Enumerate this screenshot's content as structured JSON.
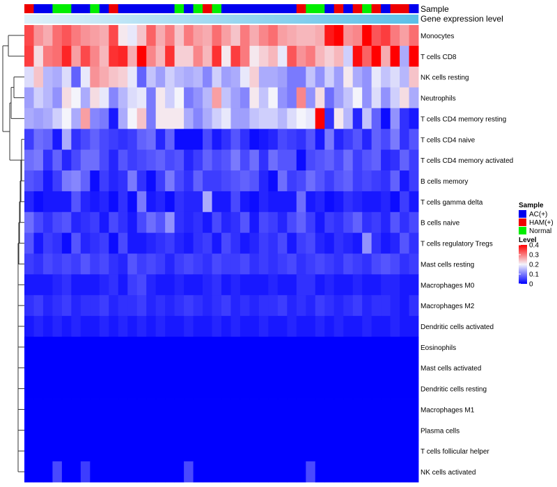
{
  "chart_data": {
    "type": "heatmap",
    "annotation_rows": [
      "Sample",
      "Gene expression level"
    ],
    "sample_annotation": [
      "HAM(+)",
      "AC(+)",
      "AC(+)",
      "Normal",
      "Normal",
      "AC(+)",
      "AC(+)",
      "Normal",
      "AC(+)",
      "HAM(+)",
      "AC(+)",
      "AC(+)",
      "AC(+)",
      "AC(+)",
      "AC(+)",
      "AC(+)",
      "Normal",
      "AC(+)",
      "Normal",
      "HAM(+)",
      "Normal",
      "AC(+)",
      "AC(+)",
      "AC(+)",
      "AC(+)",
      "AC(+)",
      "AC(+)",
      "AC(+)",
      "AC(+)",
      "HAM(+)",
      "Normal",
      "Normal",
      "AC(+)",
      "HAM(+)",
      "AC(+)",
      "HAM(+)",
      "Normal",
      "HAM(+)",
      "AC(+)",
      "HAM(+)",
      "HAM(+)",
      "AC(+)"
    ],
    "expression_gradient": [
      "#dff1fa",
      "#5bbfe8"
    ],
    "rows": [
      "Monocytes",
      "T cells CD8",
      "NK cells resting",
      "Neutrophils",
      "T cells CD4 memory resting",
      "T cells CD4 naive",
      "T cells CD4 memory activated",
      "B cells memory",
      "T cells gamma delta",
      "B cells naive",
      "T cells regulatory  Tregs",
      "Mast cells resting",
      "Macrophages M0",
      "Macrophages M2",
      "Dendritic cells activated",
      "Eosinophils",
      "Mast cells activated",
      "Dendritic cells resting",
      "Macrophages M1",
      "Plasma cells",
      "T cells follicular helper",
      "NK cells activated"
    ],
    "value_range": [
      0,
      0.4
    ],
    "values": [
      [
        0.34,
        0.28,
        0.26,
        0.31,
        0.33,
        0.3,
        0.28,
        0.27,
        0.26,
        0.34,
        0.21,
        0.19,
        0.24,
        0.32,
        0.26,
        0.3,
        0.24,
        0.3,
        0.27,
        0.26,
        0.31,
        0.27,
        0.24,
        0.3,
        0.26,
        0.29,
        0.31,
        0.27,
        0.26,
        0.25,
        0.25,
        0.26,
        0.38,
        0.4,
        0.28,
        0.29,
        0.4,
        0.33,
        0.35,
        0.3,
        0.27,
        0.31
      ],
      [
        0.35,
        0.22,
        0.3,
        0.31,
        0.37,
        0.27,
        0.34,
        0.29,
        0.25,
        0.36,
        0.37,
        0.26,
        0.4,
        0.29,
        0.25,
        0.36,
        0.23,
        0.23,
        0.29,
        0.25,
        0.36,
        0.21,
        0.35,
        0.3,
        0.21,
        0.23,
        0.25,
        0.19,
        0.33,
        0.28,
        0.3,
        0.25,
        0.23,
        0.25,
        0.17,
        0.39,
        0.32,
        0.4,
        0.26,
        0.4,
        0.14,
        0.4
      ],
      [
        0.18,
        0.24,
        0.15,
        0.14,
        0.18,
        0.08,
        0.19,
        0.28,
        0.26,
        0.24,
        0.23,
        0.19,
        0.08,
        0.16,
        0.13,
        0.17,
        0.15,
        0.14,
        0.15,
        0.11,
        0.17,
        0.13,
        0.14,
        0.19,
        0.23,
        0.14,
        0.14,
        0.13,
        0.1,
        0.1,
        0.16,
        0.12,
        0.17,
        0.13,
        0.21,
        0.14,
        0.12,
        0.19,
        0.16,
        0.18,
        0.15,
        0.24
      ],
      [
        0.13,
        0.17,
        0.15,
        0.12,
        0.22,
        0.2,
        0.14,
        0.22,
        0.19,
        0.11,
        0.15,
        0.18,
        0.19,
        0.1,
        0.21,
        0.17,
        0.2,
        0.1,
        0.12,
        0.15,
        0.27,
        0.16,
        0.13,
        0.11,
        0.21,
        0.16,
        0.2,
        0.12,
        0.1,
        0.29,
        0.12,
        0.22,
        0.09,
        0.13,
        0.16,
        0.2,
        0.12,
        0.18,
        0.12,
        0.17,
        0.22,
        0.14
      ],
      [
        0.14,
        0.13,
        0.14,
        0.17,
        0.2,
        0.14,
        0.27,
        0.11,
        0.1,
        0.02,
        0.14,
        0.2,
        0.24,
        0.1,
        0.21,
        0.21,
        0.21,
        0.14,
        0.11,
        0.14,
        0.17,
        0.19,
        0.13,
        0.13,
        0.16,
        0.17,
        0.17,
        0.15,
        0.18,
        0.2,
        0.19,
        0.4,
        0.04,
        0.21,
        0.15,
        0.03,
        0.16,
        0.08,
        0.01,
        0.12,
        0.04,
        0.02
      ],
      [
        0.05,
        0.09,
        0.08,
        0.02,
        0.14,
        0.04,
        0.06,
        0.08,
        0.06,
        0.05,
        0.04,
        0.05,
        0.08,
        0.09,
        0.03,
        0.08,
        0.01,
        0.01,
        0.01,
        0.06,
        0.02,
        0.04,
        0.07,
        0.04,
        0.01,
        0.02,
        0.03,
        0.06,
        0.05,
        0.04,
        0.07,
        0.02,
        0.1,
        0.03,
        0.05,
        0.07,
        0.03,
        0.08,
        0.06,
        0.1,
        0.04,
        0.07
      ],
      [
        0.09,
        0.1,
        0.04,
        0.08,
        0.03,
        0.06,
        0.09,
        0.09,
        0.06,
        0.03,
        0.07,
        0.05,
        0.06,
        0.07,
        0.08,
        0.06,
        0.07,
        0.03,
        0.05,
        0.08,
        0.06,
        0.07,
        0.1,
        0.06,
        0.09,
        0.04,
        0.09,
        0.07,
        0.07,
        0.01,
        0.06,
        0.07,
        0.08,
        0.06,
        0.09,
        0.05,
        0.07,
        0.08,
        0.03,
        0.04,
        0.08,
        0.05
      ],
      [
        0.07,
        0.06,
        0.02,
        0.05,
        0.1,
        0.11,
        0.08,
        0.01,
        0.05,
        0.03,
        0.04,
        0.1,
        0.04,
        0.01,
        0.05,
        0.1,
        0.06,
        0.04,
        0.08,
        0.05,
        0.05,
        0.06,
        0.07,
        0.08,
        0.07,
        0.03,
        0.01,
        0.09,
        0.05,
        0.06,
        0.09,
        0.07,
        0.05,
        0.07,
        0.08,
        0.05,
        0.06,
        0.05,
        0.04,
        0.08,
        0.02,
        0.05
      ],
      [
        0.03,
        0.01,
        0.02,
        0.02,
        0.02,
        0.07,
        0.03,
        0.02,
        0.03,
        0.01,
        0.04,
        0.01,
        0.1,
        0.02,
        0.03,
        0.01,
        0.04,
        0.03,
        0.03,
        0.14,
        0.02,
        0.02,
        0.06,
        0.02,
        0.01,
        0.03,
        0.02,
        0.02,
        0.02,
        0.09,
        0.02,
        0.03,
        0.01,
        0.02,
        0.04,
        0.03,
        0.02,
        0.02,
        0.03,
        0.01,
        0.05,
        0.02
      ],
      [
        0.09,
        0.06,
        0.04,
        0.06,
        0.07,
        0.03,
        0.04,
        0.05,
        0.02,
        0.06,
        0.04,
        0.02,
        0.06,
        0.09,
        0.07,
        0.12,
        0.04,
        0.03,
        0.04,
        0.02,
        0.06,
        0.03,
        0.04,
        0.07,
        0.02,
        0.06,
        0.05,
        0.03,
        0.06,
        0.08,
        0.05,
        0.02,
        0.05,
        0.04,
        0.06,
        0.08,
        0.04,
        0.05,
        0.03,
        0.07,
        0.04,
        0.06
      ],
      [
        0.07,
        0.02,
        0.05,
        0.04,
        0.01,
        0.07,
        0.03,
        0.04,
        0.05,
        0.01,
        0.06,
        0.02,
        0.02,
        0.03,
        0.04,
        0.05,
        0.03,
        0.02,
        0.04,
        0.05,
        0.02,
        0.06,
        0.04,
        0.02,
        0.03,
        0.05,
        0.04,
        0.06,
        0.02,
        0.05,
        0.06,
        0.03,
        0.02,
        0.04,
        0.03,
        0.02,
        0.12,
        0.04,
        0.02,
        0.03,
        0.07,
        0.04
      ],
      [
        0.05,
        0.04,
        0.06,
        0.05,
        0.06,
        0.05,
        0.07,
        0.05,
        0.06,
        0.04,
        0.03,
        0.07,
        0.05,
        0.06,
        0.05,
        0.03,
        0.05,
        0.06,
        0.05,
        0.04,
        0.06,
        0.05,
        0.05,
        0.06,
        0.04,
        0.05,
        0.04,
        0.05,
        0.06,
        0.04,
        0.05,
        0.06,
        0.05,
        0.04,
        0.06,
        0.05,
        0.04,
        0.06,
        0.07,
        0.06,
        0.04,
        0.05
      ],
      [
        0.02,
        0.02,
        0.02,
        0.03,
        0.04,
        0.02,
        0.02,
        0.02,
        0.03,
        0.04,
        0.02,
        0.05,
        0.06,
        0.03,
        0.02,
        0.02,
        0.03,
        0.02,
        0.02,
        0.03,
        0.04,
        0.02,
        0.03,
        0.02,
        0.02,
        0.02,
        0.03,
        0.02,
        0.02,
        0.04,
        0.04,
        0.02,
        0.03,
        0.02,
        0.02,
        0.03,
        0.02,
        0.02,
        0.03,
        0.03,
        0.02,
        0.02
      ],
      [
        0.04,
        0.05,
        0.03,
        0.04,
        0.05,
        0.03,
        0.04,
        0.04,
        0.05,
        0.03,
        0.04,
        0.04,
        0.05,
        0.03,
        0.04,
        0.03,
        0.04,
        0.05,
        0.04,
        0.03,
        0.04,
        0.05,
        0.03,
        0.04,
        0.03,
        0.04,
        0.04,
        0.05,
        0.03,
        0.04,
        0.03,
        0.05,
        0.04,
        0.03,
        0.04,
        0.05,
        0.03,
        0.04,
        0.04,
        0.03,
        0.02,
        0.04
      ],
      [
        0.02,
        0.03,
        0.02,
        0.03,
        0.02,
        0.03,
        0.02,
        0.02,
        0.03,
        0.02,
        0.03,
        0.02,
        0.03,
        0.02,
        0.03,
        0.02,
        0.02,
        0.03,
        0.02,
        0.02,
        0.03,
        0.02,
        0.03,
        0.02,
        0.02,
        0.03,
        0.02,
        0.02,
        0.03,
        0.02,
        0.02,
        0.03,
        0.02,
        0.03,
        0.02,
        0.02,
        0.03,
        0.02,
        0.02,
        0.03,
        0.02,
        0.02
      ],
      [
        0,
        0,
        0,
        0,
        0,
        0,
        0,
        0,
        0,
        0,
        0,
        0,
        0,
        0,
        0,
        0,
        0,
        0,
        0,
        0,
        0,
        0,
        0,
        0,
        0,
        0,
        0,
        0,
        0,
        0,
        0,
        0,
        0,
        0,
        0,
        0,
        0,
        0,
        0,
        0,
        0,
        0
      ],
      [
        0,
        0,
        0,
        0,
        0,
        0,
        0,
        0,
        0,
        0,
        0,
        0,
        0,
        0,
        0,
        0,
        0,
        0,
        0,
        0,
        0,
        0,
        0,
        0,
        0,
        0,
        0,
        0,
        0,
        0,
        0,
        0,
        0,
        0,
        0,
        0,
        0,
        0,
        0,
        0,
        0,
        0
      ],
      [
        0,
        0,
        0,
        0,
        0,
        0,
        0,
        0,
        0,
        0,
        0,
        0,
        0,
        0,
        0,
        0,
        0,
        0,
        0,
        0,
        0,
        0,
        0,
        0,
        0,
        0,
        0,
        0,
        0,
        0,
        0,
        0,
        0,
        0,
        0,
        0,
        0,
        0,
        0,
        0,
        0,
        0
      ],
      [
        0,
        0,
        0,
        0,
        0,
        0,
        0,
        0,
        0,
        0,
        0,
        0,
        0,
        0,
        0,
        0,
        0,
        0,
        0,
        0,
        0,
        0,
        0,
        0,
        0,
        0,
        0,
        0,
        0,
        0,
        0,
        0,
        0,
        0,
        0,
        0,
        0,
        0,
        0,
        0,
        0,
        0
      ],
      [
        0,
        0,
        0,
        0,
        0,
        0,
        0,
        0,
        0,
        0,
        0,
        0,
        0,
        0,
        0,
        0,
        0,
        0,
        0,
        0,
        0,
        0,
        0,
        0,
        0,
        0,
        0,
        0,
        0,
        0,
        0,
        0,
        0,
        0,
        0,
        0,
        0,
        0,
        0,
        0,
        0,
        0
      ],
      [
        0,
        0,
        0,
        0,
        0,
        0,
        0,
        0,
        0,
        0,
        0,
        0,
        0,
        0,
        0,
        0,
        0,
        0,
        0,
        0,
        0,
        0,
        0,
        0,
        0,
        0,
        0,
        0,
        0,
        0,
        0,
        0,
        0,
        0,
        0,
        0,
        0,
        0,
        0,
        0,
        0,
        0
      ],
      [
        0,
        0,
        0,
        0.06,
        0,
        0,
        0.05,
        0,
        0,
        0,
        0,
        0,
        0,
        0,
        0,
        0,
        0,
        0.06,
        0,
        0,
        0,
        0,
        0,
        0,
        0,
        0,
        0,
        0,
        0,
        0,
        0.06,
        0,
        0,
        0,
        0,
        0,
        0,
        0,
        0,
        0,
        0,
        0
      ]
    ],
    "legend": {
      "sample_title": "Sample",
      "sample_entries": [
        {
          "label": "AC(+)",
          "color": "#0000ee"
        },
        {
          "label": "HAM(+)",
          "color": "#ee0000"
        },
        {
          "label": "Normal",
          "color": "#00ee00"
        }
      ],
      "level_title": "Level",
      "level_ticks": [
        "0.4",
        "0.3",
        "0.2",
        "0.1",
        "0"
      ],
      "level_tick_values": [
        0.4,
        0.3,
        0.2,
        0.1,
        0
      ],
      "placement": "right"
    },
    "colors": {
      "low": "#0000ff",
      "mid": "#f4f4fb",
      "high": "#ff0000"
    }
  }
}
